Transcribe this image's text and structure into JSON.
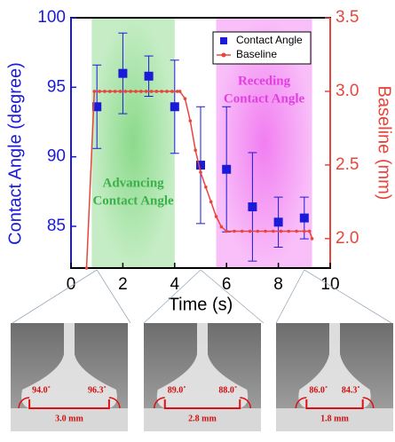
{
  "chart_data": {
    "type": "scatter",
    "xlabel": "Time (s)",
    "ylabel": "Contact Angle (degree)",
    "y2label": "Baseline (mm)",
    "xlim": [
      0,
      10
    ],
    "xticks": [
      0,
      2,
      4,
      6,
      8,
      10
    ],
    "ylim": [
      82,
      100
    ],
    "yticks": [
      85,
      90,
      95,
      100
    ],
    "y2lim": [
      1.8,
      3.5
    ],
    "y2ticks": [
      {
        "value": 2,
        "label": "2.0"
      },
      {
        "value": 2.5,
        "label": "2.5"
      },
      {
        "value": 3,
        "label": "3.0"
      },
      {
        "value": 3.5,
        "label": "3.5"
      }
    ],
    "legend": "upper right",
    "series": [
      {
        "name": "Contact Angle",
        "color": "#1a1ad8",
        "style": "errorbar",
        "x": [
          1,
          2,
          3,
          4,
          5,
          6,
          7,
          8,
          9
        ],
        "values": [
          93.6,
          96.0,
          95.8,
          93.6,
          89.4,
          89.1,
          86.4,
          85.3,
          85.6
        ],
        "errors": [
          3.0,
          2.9,
          1.45,
          3.35,
          4.2,
          4.5,
          3.9,
          1.8,
          1.5
        ]
      },
      {
        "name": "Baseline",
        "color": "#e8453c",
        "style": "line",
        "axis": "y2",
        "x": [
          0.6,
          0.9,
          1.1,
          1.3,
          1.5,
          1.7,
          1.9,
          2.1,
          2.3,
          2.5,
          2.7,
          2.9,
          3.1,
          3.3,
          3.5,
          3.7,
          3.9,
          4.1,
          4.2,
          4.4,
          4.6,
          4.8,
          5.0,
          5.2,
          5.4,
          5.6,
          5.8,
          6.0,
          6.3,
          6.6,
          6.9,
          7.2,
          7.5,
          7.8,
          8.1,
          8.4,
          8.7,
          9.0,
          9.2,
          9.3
        ],
        "values": [
          1.8,
          3.0,
          3.0,
          3.0,
          3.0,
          3.0,
          3.0,
          3.0,
          3.0,
          3.0,
          3.0,
          3.0,
          3.0,
          3.0,
          3.0,
          3.0,
          3.0,
          3.0,
          3.0,
          2.95,
          2.8,
          2.6,
          2.45,
          2.35,
          2.25,
          2.15,
          2.08,
          2.05,
          2.05,
          2.05,
          2.05,
          2.05,
          2.05,
          2.05,
          2.05,
          2.05,
          2.05,
          2.05,
          2.05,
          2.0
        ]
      }
    ],
    "regions": [
      {
        "x": [
          0.8,
          4.0
        ],
        "label": [
          "Advancing",
          "Contact Angle"
        ],
        "color": "#7ed67e",
        "text_color": "#3cb04a"
      },
      {
        "x": [
          5.6,
          9.3
        ],
        "label": [
          "Receding",
          "Contact Angle"
        ],
        "color": "#f070f0",
        "text_color": "#e040e0"
      }
    ]
  },
  "photos": [
    {
      "left_angle": "94.0˚",
      "right_angle": "96.3˚",
      "width": "3.0 mm"
    },
    {
      "left_angle": "89.0˚",
      "right_angle": "88.0˚",
      "width": "2.8 mm"
    },
    {
      "left_angle": "86.0˚",
      "right_angle": "84.3˚",
      "width": "1.8 mm"
    }
  ]
}
